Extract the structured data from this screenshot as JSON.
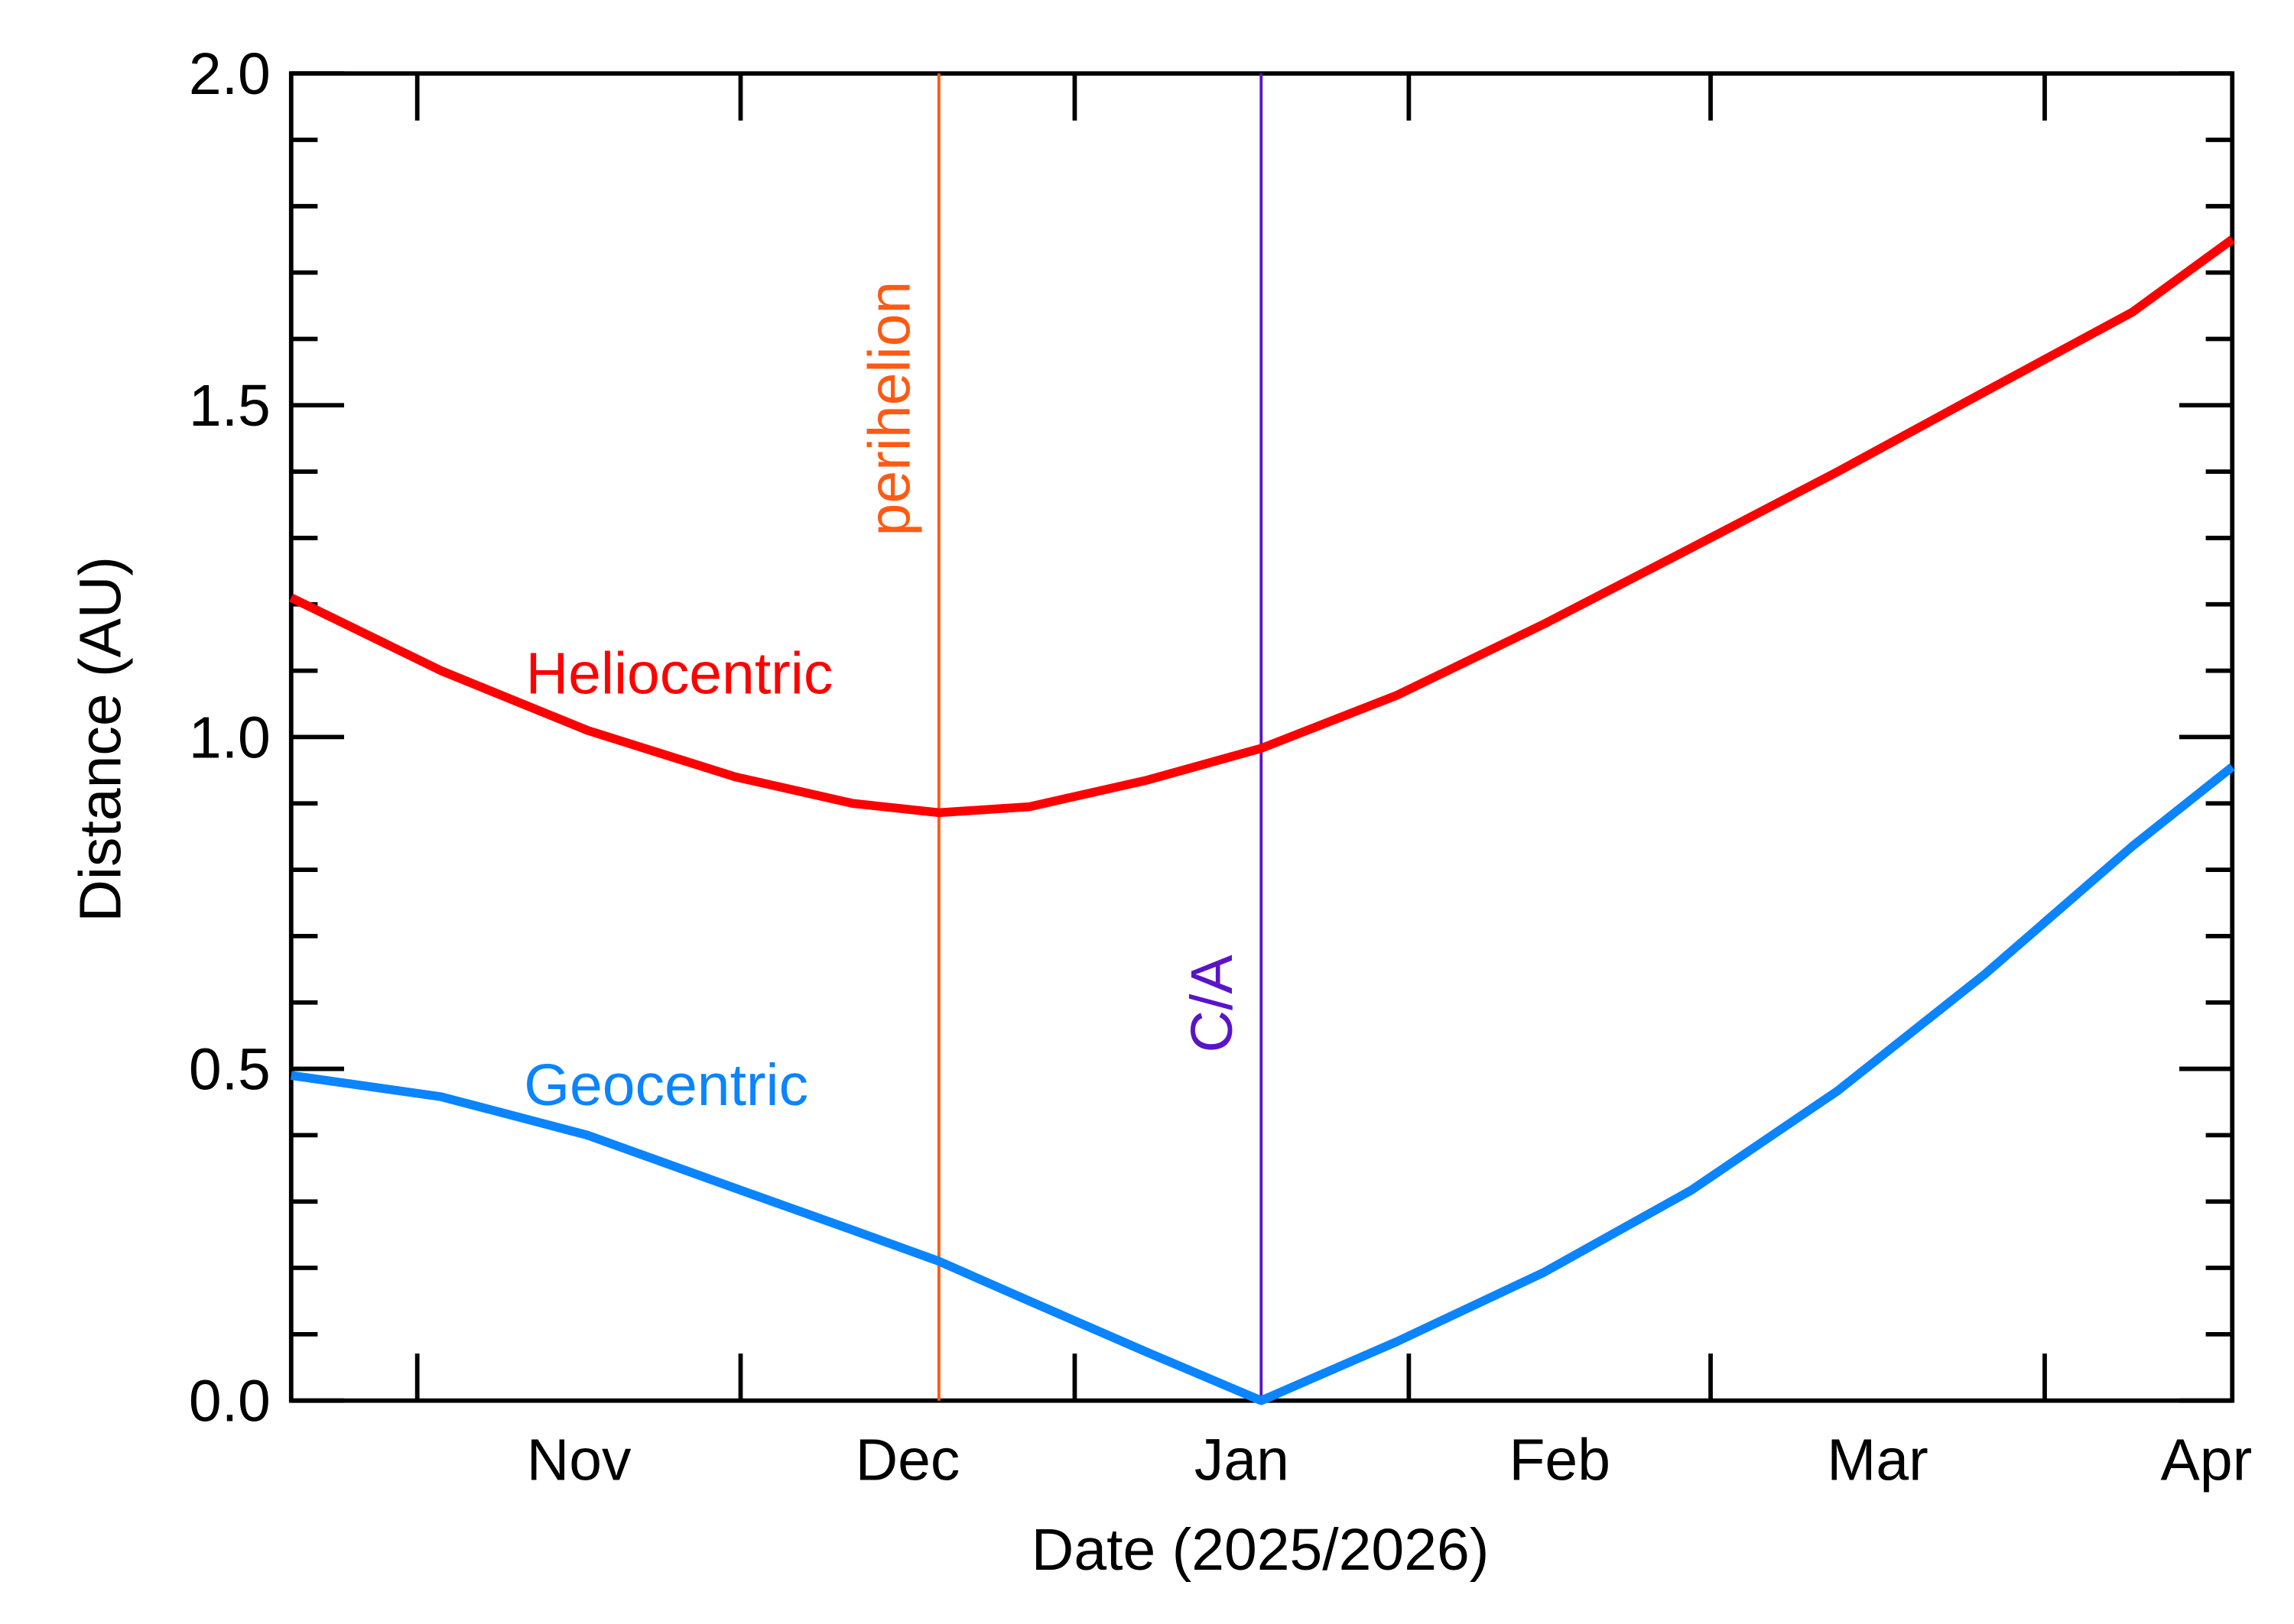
{
  "chart_data": {
    "type": "line",
    "xlabel": "Date (2025/2026)",
    "ylabel": "Distance (AU)",
    "xlim": [
      -72.7,
      107.4
    ],
    "xticks": [
      -61,
      -31,
      0,
      31,
      59,
      90
    ],
    "xtick_labels": [
      {
        "value": -46,
        "label": "Nov"
      },
      {
        "value": -15.5,
        "label": "Dec"
      },
      {
        "value": 15.5,
        "label": "Jan"
      },
      {
        "value": 45,
        "label": "Feb"
      },
      {
        "value": 74.5,
        "label": "Mar"
      },
      {
        "value": 105,
        "label": "Apr"
      }
    ],
    "ylim": [
      0,
      2
    ],
    "yticks": [
      {
        "value": 0,
        "label": "0.0"
      },
      0.5,
      {
        "value": 1,
        "label": "1.0"
      },
      1.5,
      {
        "value": 2,
        "label": "2.0"
      }
    ],
    "yminorticks": [
      0.1,
      0.2,
      0.3,
      0.4,
      0.6,
      0.7,
      0.8,
      0.9,
      1.1,
      1.2,
      1.3,
      1.4,
      1.6,
      1.7,
      1.8,
      1.9
    ],
    "series": [
      {
        "name": "Heliocentric",
        "color": "#ff0000",
        "x": [
          -72.7,
          -58.8,
          -45.2,
          -31.5,
          -20.6,
          -12.6,
          -4.2,
          6.7,
          17.3,
          29.9,
          43.5,
          57.2,
          70.8,
          84.4,
          98.1,
          107.4
        ],
        "values": [
          1.21,
          1.1,
          1.01,
          0.94,
          0.9,
          0.886,
          0.895,
          0.935,
          0.983,
          1.063,
          1.17,
          1.285,
          1.4,
          1.52,
          1.64,
          1.75
        ]
      },
      {
        "name": "Geocentric",
        "color": "#0a84ff",
        "x": [
          -72.7,
          -58.8,
          -45.2,
          -31.5,
          -20.6,
          -12.6,
          -4.2,
          6.7,
          17.3,
          29.9,
          43.5,
          57.2,
          70.8,
          84.4,
          98.1,
          107.4
        ],
        "values": [
          0.49,
          0.458,
          0.4,
          0.32,
          0.257,
          0.21,
          0.15,
          0.073,
          0.0,
          0.089,
          0.193,
          0.317,
          0.467,
          0.642,
          0.835,
          0.955
        ]
      }
    ],
    "annotations": [
      {
        "text": "perihelion",
        "x": -12.6,
        "color": "#ff5a14"
      },
      {
        "text": "C/A",
        "x": 17.3,
        "color": "#5a14c8"
      }
    ]
  }
}
